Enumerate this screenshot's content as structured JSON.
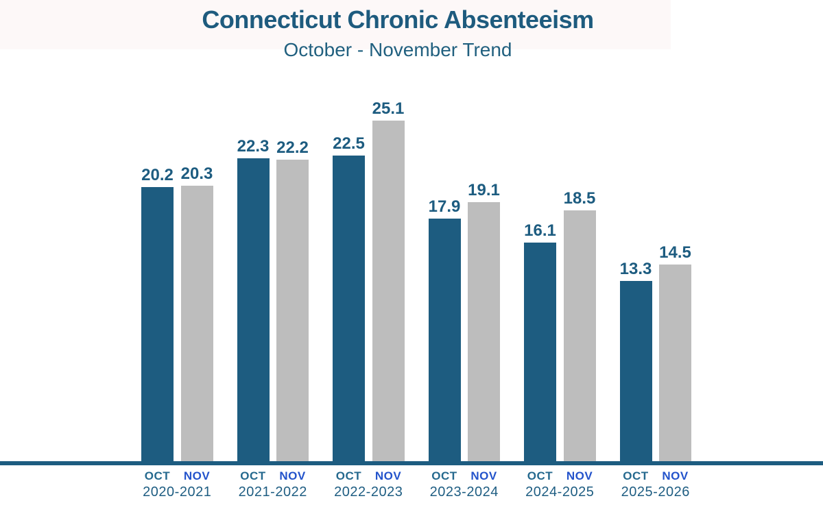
{
  "header": {
    "title": "Connecticut Chronic Absenteeism",
    "subtitle": "October - November Trend"
  },
  "colors": {
    "title_text": "#1e5b7e",
    "subtitle_text": "#21607f",
    "oct_bar": "#1d5c80",
    "nov_bar": "#bdbdbd",
    "value_label_text": "#1d5c80",
    "oct_axis_label": "#25698e",
    "nov_axis_label": "#2353cb",
    "year_axis_label": "#1e5d82",
    "baseline": "#1d5c80",
    "background": "#ffffff"
  },
  "chart_data": {
    "type": "bar",
    "title": "Connecticut Chronic Absenteeism",
    "subtitle": "October - November Trend",
    "categories": [
      "2020-2021",
      "2021-2022",
      "2022-2023",
      "2023-2024",
      "2024-2025",
      "2025-2026"
    ],
    "series": [
      {
        "name": "OCT",
        "color": "#1d5c80",
        "values": [
          20.2,
          22.3,
          22.5,
          17.9,
          16.1,
          13.3
        ]
      },
      {
        "name": "NOV",
        "color": "#bdbdbd",
        "values": [
          20.3,
          22.2,
          25.1,
          19.1,
          18.5,
          14.5
        ]
      }
    ],
    "value_labels": true,
    "x_tick_series_labels": [
      "OCT",
      "NOV"
    ],
    "ylim": [
      0,
      26
    ],
    "grid": false,
    "legend_position": "none",
    "y_axis_shown": false
  }
}
